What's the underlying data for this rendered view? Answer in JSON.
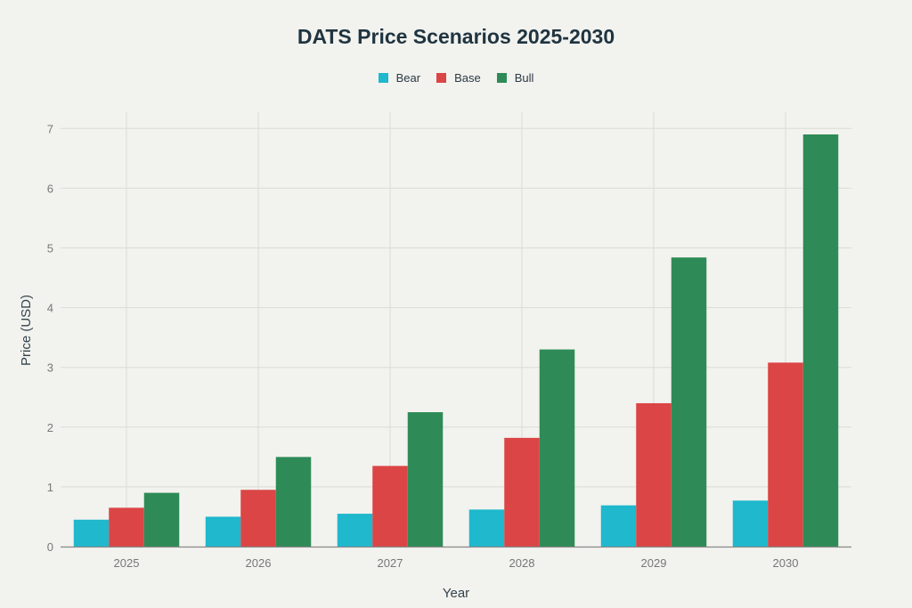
{
  "chart_data": {
    "type": "bar",
    "title": "DATS Price Scenarios 2025-2030",
    "xlabel": "Year",
    "ylabel": "Price (USD)",
    "categories": [
      "2025",
      "2026",
      "2027",
      "2028",
      "2029",
      "2030"
    ],
    "series": [
      {
        "name": "Bear",
        "color": "#1fb8cd",
        "values": [
          0.45,
          0.5,
          0.55,
          0.62,
          0.69,
          0.77
        ]
      },
      {
        "name": "Base",
        "color": "#db4545",
        "values": [
          0.65,
          0.95,
          1.35,
          1.82,
          2.4,
          3.08
        ]
      },
      {
        "name": "Bull",
        "color": "#2e8b57",
        "values": [
          0.9,
          1.5,
          2.25,
          3.3,
          4.84,
          6.9
        ]
      }
    ],
    "ylim": [
      0,
      7.4
    ],
    "yticks": [
      0,
      1,
      2,
      3,
      4,
      5,
      6,
      7
    ],
    "grid": true,
    "legend_position": "top-center"
  }
}
